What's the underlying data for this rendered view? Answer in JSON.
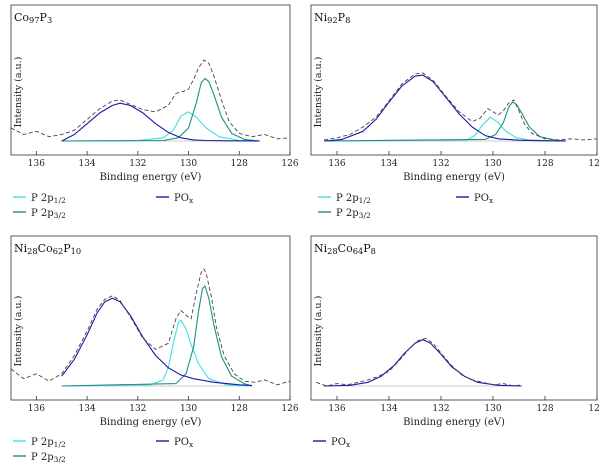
{
  "chart_data": [
    {
      "type": "line",
      "title": "Co97P3",
      "title_parts": [
        {
          "t": "Co",
          "s": false
        },
        {
          "t": "97",
          "s": true
        },
        {
          "t": "P",
          "s": false
        },
        {
          "t": "3",
          "s": true
        }
      ],
      "xlabel": "Binding energy (eV)",
      "ylabel": "Intensity (a.u.)",
      "xlim": [
        137,
        126
      ],
      "ylim": [
        0,
        100
      ],
      "x_ticks": [
        136,
        134,
        132,
        130,
        128,
        126
      ],
      "x_reversed": true,
      "series": [
        {
          "name": "P 2p1/2",
          "name_parts": [
            {
              "t": "P 2p",
              "s": false
            },
            {
              "t": "1/2",
              "s": true
            }
          ],
          "color": "#3fe0e0",
          "x": [
            135.0,
            132.0,
            131.0,
            130.6,
            130.3,
            130.0,
            129.7,
            129.3,
            128.8,
            128.0,
            127.2
          ],
          "y": [
            0,
            0.4,
            3,
            10,
            23,
            27,
            22,
            12,
            4,
            0.5,
            0
          ]
        },
        {
          "name": "P 2p3/2",
          "name_parts": [
            {
              "t": "P 2p",
              "s": false
            },
            {
              "t": "3/2",
              "s": true
            }
          ],
          "color": "#1f8f85",
          "x": [
            135.0,
            131.0,
            130.4,
            130.0,
            129.7,
            129.5,
            129.35,
            129.2,
            129.0,
            128.7,
            128.3,
            127.8,
            127.2
          ],
          "y": [
            0,
            0.5,
            3,
            12,
            35,
            54,
            58,
            55,
            43,
            22,
            7,
            1.5,
            0
          ]
        },
        {
          "name": "POx",
          "name_parts": [
            {
              "t": "PO",
              "s": false
            },
            {
              "t": "x",
              "s": true
            }
          ],
          "color": "#1a1aa8",
          "x": [
            135.0,
            134.5,
            134.0,
            133.5,
            133.0,
            132.7,
            132.3,
            131.8,
            131.3,
            130.8,
            130.3,
            129.8,
            129.3,
            128.5,
            127.2
          ],
          "y": [
            0,
            6,
            16,
            26,
            33,
            35,
            33,
            26,
            16,
            8,
            3,
            1,
            0.5,
            0.2,
            0
          ]
        },
        {
          "name": "",
          "color": "#444444",
          "dashed": true,
          "x": [
            137.0,
            136.5,
            136.0,
            135.5,
            135.0,
            134.5,
            134.0,
            133.5,
            133.0,
            132.7,
            132.3,
            131.8,
            131.3,
            130.8,
            130.5,
            130.2,
            130.0,
            129.8,
            129.6,
            129.4,
            129.2,
            129.0,
            128.7,
            128.4,
            128.0,
            127.5,
            127.0,
            126.5,
            126.0
          ],
          "y": [
            12,
            6,
            9,
            4,
            6,
            10,
            20,
            30,
            37,
            38,
            34,
            29,
            27,
            33,
            44,
            46,
            48,
            57,
            68,
            75,
            72,
            60,
            38,
            18,
            7,
            4,
            6,
            2,
            3
          ]
        }
      ],
      "legend": [
        {
          "name_parts": [
            {
              "t": "P 2p",
              "s": false
            },
            {
              "t": "1/2",
              "s": true
            }
          ],
          "color": "#3fe0e0"
        },
        {
          "name_parts": [
            {
              "t": "PO",
              "s": false
            },
            {
              "t": "x",
              "s": true
            }
          ],
          "color": "#1a1aa8"
        },
        {
          "name_parts": [
            {
              "t": "P 2p",
              "s": false
            },
            {
              "t": "3/2",
              "s": true
            }
          ],
          "color": "#1f8f85"
        }
      ]
    },
    {
      "type": "line",
      "title": "Ni92P8",
      "title_parts": [
        {
          "t": "Ni",
          "s": false
        },
        {
          "t": "92",
          "s": true
        },
        {
          "t": "P",
          "s": false
        },
        {
          "t": "8",
          "s": true
        }
      ],
      "xlabel": "Binding energy (eV)",
      "ylabel": "Intensity (a.u.)",
      "xlim": [
        137,
        126
      ],
      "ylim": [
        0,
        100
      ],
      "x_ticks": [
        136,
        134,
        132,
        130,
        128,
        126
      ],
      "x_reversed": true,
      "series": [
        {
          "name": "P 2p1/2",
          "name_parts": [
            {
              "t": "P 2p",
              "s": false
            },
            {
              "t": "1/2",
              "s": true
            }
          ],
          "color": "#3fe0e0",
          "x": [
            136.5,
            131.0,
            130.7,
            130.4,
            130.1,
            129.8,
            129.5,
            129.1,
            128.6,
            127.2
          ],
          "y": [
            0,
            1,
            5,
            15,
            22,
            17,
            9,
            3,
            0.8,
            0
          ]
        },
        {
          "name": "P 2p3/2",
          "name_parts": [
            {
              "t": "P 2p",
              "s": false
            },
            {
              "t": "3/2",
              "s": true
            }
          ],
          "color": "#1f8f85",
          "x": [
            136.5,
            130.3,
            129.9,
            129.6,
            129.4,
            129.25,
            129.1,
            128.9,
            128.6,
            128.2,
            127.6,
            127.2
          ],
          "y": [
            0,
            1.5,
            6,
            17,
            31,
            36,
            34,
            26,
            13,
            4,
            0.8,
            0
          ]
        },
        {
          "name": "POx",
          "name_parts": [
            {
              "t": "PO",
              "s": false
            },
            {
              "t": "x",
              "s": true
            }
          ],
          "color": "#1a1aa8",
          "x": [
            136.5,
            135.8,
            135.0,
            134.5,
            134.0,
            133.5,
            133.0,
            132.7,
            132.3,
            131.8,
            131.3,
            130.8,
            130.3,
            129.8,
            129.0,
            128.0,
            127.2
          ],
          "y": [
            0,
            1.5,
            9,
            20,
            36,
            51,
            60,
            61,
            55,
            40,
            25,
            13,
            5,
            2,
            0.7,
            0.2,
            0
          ]
        },
        {
          "name": "",
          "color": "#444444",
          "dashed": true,
          "x": [
            136.5,
            136.0,
            135.5,
            135.0,
            134.5,
            134.0,
            133.5,
            133.0,
            132.7,
            132.3,
            131.8,
            131.3,
            130.8,
            130.5,
            130.2,
            130.0,
            129.8,
            129.6,
            129.4,
            129.2,
            129.0,
            128.8,
            128.5,
            128.0,
            127.5,
            127.0,
            126.5,
            126.0
          ],
          "y": [
            1,
            3,
            6,
            13,
            22,
            37,
            53,
            62,
            63,
            56,
            41,
            27,
            18,
            21,
            30,
            27,
            24,
            28,
            35,
            38,
            28,
            16,
            7,
            2,
            1,
            2,
            1,
            2
          ]
        }
      ],
      "legend": [
        {
          "name_parts": [
            {
              "t": "P 2p",
              "s": false
            },
            {
              "t": "1/2",
              "s": true
            }
          ],
          "color": "#3fe0e0"
        },
        {
          "name_parts": [
            {
              "t": "PO",
              "s": false
            },
            {
              "t": "x",
              "s": true
            }
          ],
          "color": "#1a1aa8"
        },
        {
          "name_parts": [
            {
              "t": "P 2p",
              "s": false
            },
            {
              "t": "3/2",
              "s": true
            }
          ],
          "color": "#1f8f85"
        }
      ]
    },
    {
      "type": "line",
      "title": "Ni28Co62P10",
      "title_parts": [
        {
          "t": "Ni",
          "s": false
        },
        {
          "t": "28",
          "s": true
        },
        {
          "t": "Co",
          "s": false
        },
        {
          "t": "62",
          "s": true
        },
        {
          "t": "P",
          "s": false
        },
        {
          "t": "10",
          "s": true
        }
      ],
      "xlabel": "Binding energy (eV)",
      "ylabel": "Intensity (a.u.)",
      "xlim": [
        137,
        126
      ],
      "ylim": [
        0,
        100
      ],
      "x_ticks": [
        136,
        134,
        132,
        130,
        128,
        126
      ],
      "x_reversed": true,
      "series": [
        {
          "name": "P 2p1/2",
          "name_parts": [
            {
              "t": "P 2p",
              "s": false
            },
            {
              "t": "1/2",
              "s": true
            }
          ],
          "color": "#3fe0e0",
          "x": [
            135.0,
            131.5,
            131.0,
            130.8,
            130.6,
            130.4,
            130.3,
            130.1,
            129.9,
            129.6,
            129.2,
            128.5,
            127.5
          ],
          "y": [
            0,
            1,
            5,
            15,
            35,
            52,
            54,
            47,
            34,
            18,
            6,
            1,
            0
          ]
        },
        {
          "name": "P 2p3/2",
          "name_parts": [
            {
              "t": "P 2p",
              "s": false
            },
            {
              "t": "3/2",
              "s": true
            }
          ],
          "color": "#1f8f85",
          "x": [
            135.0,
            130.5,
            130.1,
            129.8,
            129.6,
            129.45,
            129.35,
            129.2,
            129.0,
            128.7,
            128.3,
            127.8,
            127.5
          ],
          "y": [
            0,
            2,
            10,
            32,
            62,
            80,
            82,
            72,
            50,
            24,
            8,
            2,
            0
          ]
        },
        {
          "name": "POx",
          "name_parts": [
            {
              "t": "PO",
              "s": false
            },
            {
              "t": "x",
              "s": true
            }
          ],
          "color": "#1a1aa8",
          "x": [
            135.0,
            134.5,
            134.0,
            133.6,
            133.3,
            133.0,
            132.7,
            132.3,
            131.8,
            131.3,
            130.8,
            130.3,
            129.8,
            129.0,
            128.0,
            127.5
          ],
          "y": [
            8,
            22,
            42,
            60,
            69,
            72,
            69,
            58,
            40,
            25,
            15,
            9,
            6,
            3,
            1,
            0.5
          ]
        },
        {
          "name": "",
          "color": "#444444",
          "dashed": true,
          "x": [
            137.0,
            136.5,
            136.0,
            135.5,
            135.0,
            134.5,
            134.0,
            133.6,
            133.3,
            133.0,
            132.7,
            132.3,
            131.8,
            131.3,
            130.8,
            130.5,
            130.3,
            130.1,
            129.9,
            129.7,
            129.5,
            129.4,
            129.3,
            129.1,
            128.9,
            128.6,
            128.2,
            127.8,
            127.4,
            127.0,
            126.5,
            126.0
          ],
          "y": [
            14,
            6,
            10,
            4,
            10,
            25,
            45,
            63,
            71,
            74,
            70,
            57,
            39,
            30,
            35,
            55,
            62,
            58,
            55,
            76,
            93,
            96,
            92,
            73,
            48,
            25,
            10,
            4,
            3,
            5,
            1,
            4
          ]
        }
      ],
      "legend": [
        {
          "name_parts": [
            {
              "t": "P 2p",
              "s": false
            },
            {
              "t": "1/2",
              "s": true
            }
          ],
          "color": "#3fe0e0"
        },
        {
          "name_parts": [
            {
              "t": "PO",
              "s": false
            },
            {
              "t": "x",
              "s": true
            }
          ],
          "color": "#1a1aa8"
        },
        {
          "name_parts": [
            {
              "t": "P 2p",
              "s": false
            },
            {
              "t": "3/2",
              "s": true
            }
          ],
          "color": "#1f8f85"
        }
      ]
    },
    {
      "type": "line",
      "title": "Ni28Co64P8",
      "title_parts": [
        {
          "t": "Ni",
          "s": false
        },
        {
          "t": "28",
          "s": true
        },
        {
          "t": "Co",
          "s": false
        },
        {
          "t": "64",
          "s": true
        },
        {
          "t": "P",
          "s": false
        },
        {
          "t": "8",
          "s": true
        }
      ],
      "xlabel": "Binding energy (eV)",
      "ylabel": "Intensity (a.u.)",
      "xlim": [
        137,
        126
      ],
      "ylim": [
        0,
        100
      ],
      "x_ticks": [
        136,
        134,
        132,
        130,
        128,
        126
      ],
      "x_reversed": true,
      "series": [
        {
          "name": "POx",
          "name_parts": [
            {
              "t": "PO",
              "s": false
            },
            {
              "t": "x",
              "s": true
            }
          ],
          "color": "#1a1aa8",
          "x": [
            136.5,
            135.5,
            134.8,
            134.3,
            133.8,
            133.4,
            133.0,
            132.7,
            132.4,
            132.0,
            131.6,
            131.1,
            130.6,
            129.8,
            128.9
          ],
          "y": [
            0,
            0.6,
            3,
            8,
            17,
            27,
            35,
            38,
            35,
            26,
            16,
            8,
            3,
            0.6,
            0
          ]
        },
        {
          "name": "",
          "color": "#444444",
          "dashed": true,
          "x": [
            136.8,
            136.4,
            136.0,
            135.6,
            135.2,
            134.8,
            134.4,
            134.0,
            133.6,
            133.2,
            132.9,
            132.6,
            132.3,
            132.0,
            131.6,
            131.2,
            130.8,
            130.4,
            130.0,
            129.6,
            129.2,
            128.9
          ],
          "y": [
            3,
            0,
            2,
            1,
            3,
            5,
            8,
            12,
            21,
            31,
            37,
            39,
            35,
            27,
            17,
            9,
            5,
            3,
            1,
            2,
            0,
            1
          ]
        }
      ],
      "legend": [
        {
          "name_parts": [
            {
              "t": "PO",
              "s": false
            },
            {
              "t": "x",
              "s": true
            }
          ],
          "color": "#1a1aa8"
        }
      ]
    }
  ]
}
